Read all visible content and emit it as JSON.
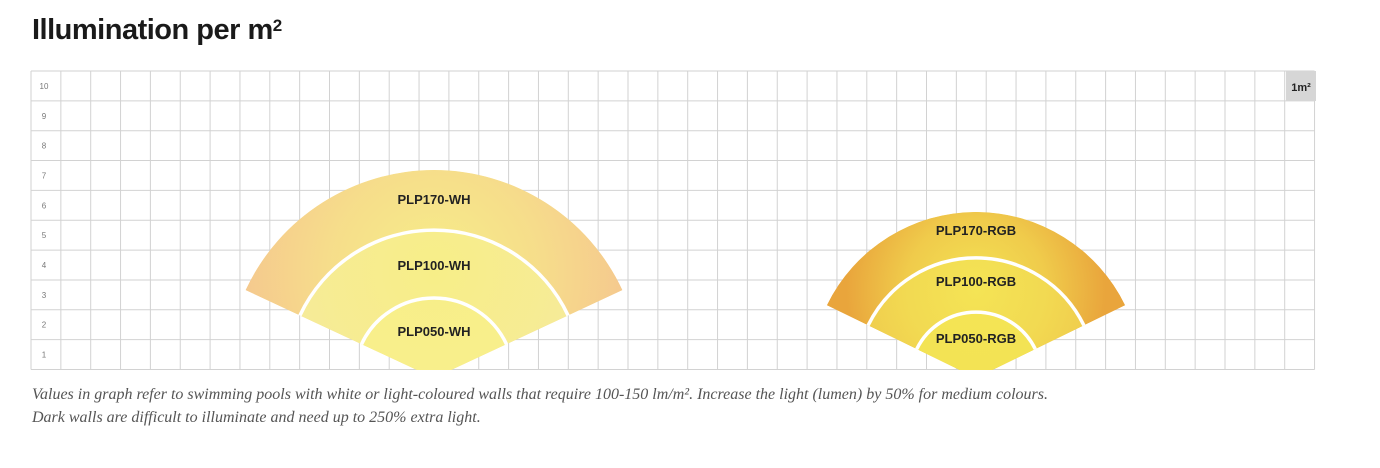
{
  "header": {
    "title": "Illumination per m",
    "title_sup": "2"
  },
  "chart_data": {
    "type": "area",
    "title": "Illumination per m²",
    "y_ticks": [
      "1",
      "2",
      "3",
      "4",
      "5",
      "6",
      "7",
      "8",
      "9",
      "10"
    ],
    "grid_columns": 43,
    "grid_rows": 10,
    "unit_label": "1m²",
    "groups": [
      {
        "name": "WH",
        "spot_color": "#f7ee88",
        "levels": [
          {
            "label": "PLP170-WH",
            "outer_color": "#f5c98e"
          },
          {
            "label": "PLP100-WH",
            "outer_color": "#f6e9a0"
          },
          {
            "label": "PLP050-WH",
            "outer_color": "#f9f190"
          }
        ]
      },
      {
        "name": "RGB",
        "spot_color": "#f4e455",
        "levels": [
          {
            "label": "PLP170-RGB",
            "outer_color": "#e9a53c"
          },
          {
            "label": "PLP100-RGB",
            "outer_color": "#efc94c"
          },
          {
            "label": "PLP050-RGB",
            "outer_color": "#f2e253"
          }
        ]
      }
    ],
    "grid": true
  },
  "footnote": {
    "line1": "Values in graph refer to swimming pools with white or light-coloured walls that require 100-150 lm/m². Increase the light (lumen) by 50% for medium colours.",
    "line2": "Dark walls are difficult to illuminate and need up to 250% extra light."
  }
}
